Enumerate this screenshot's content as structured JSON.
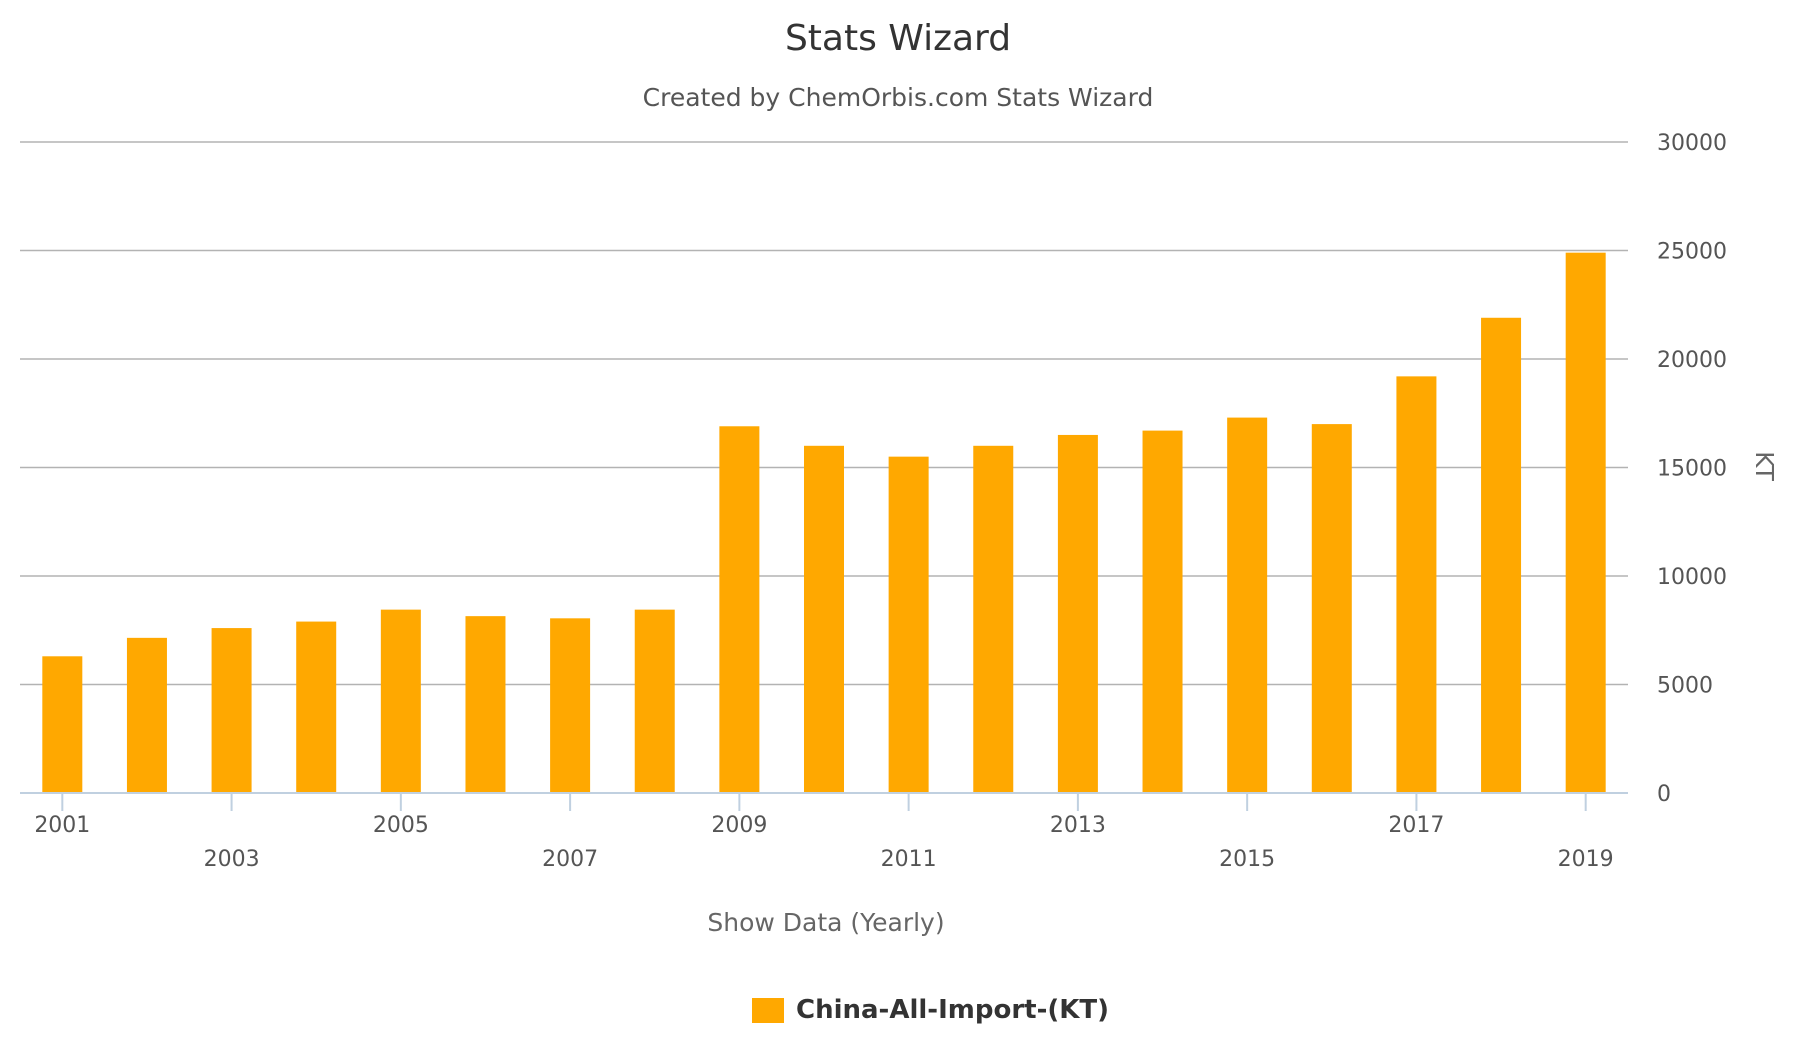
{
  "chart_data": {
    "type": "bar",
    "title": "Stats Wizard",
    "subtitle": "Created by ChemOrbis.com Stats Wizard",
    "xlabel": "Show Data (Yearly)",
    "ylabel": "KT",
    "ylim": [
      0,
      30000
    ],
    "yticks": [
      0,
      5000,
      10000,
      15000,
      20000,
      25000,
      30000
    ],
    "categories": [
      "2001",
      "2002",
      "2003",
      "2004",
      "2005",
      "2006",
      "2007",
      "2008",
      "2009",
      "2010",
      "2011",
      "2012",
      "2013",
      "2014",
      "2015",
      "2016",
      "2017",
      "2018",
      "2019"
    ],
    "xtick_labels": [
      "2001",
      "2003",
      "2005",
      "2007",
      "2009",
      "2011",
      "2013",
      "2015",
      "2017",
      "2019"
    ],
    "series": [
      {
        "name": "China-All-Import-(KT)",
        "color": "#FFA800",
        "values": [
          6300,
          7150,
          7600,
          7900,
          8450,
          8150,
          8050,
          8450,
          16900,
          16000,
          15500,
          16000,
          16500,
          16700,
          17300,
          17000,
          19200,
          21900,
          24900
        ]
      }
    ],
    "grid": true,
    "legend_position": "bottom-center",
    "y_axis_side": "right"
  }
}
